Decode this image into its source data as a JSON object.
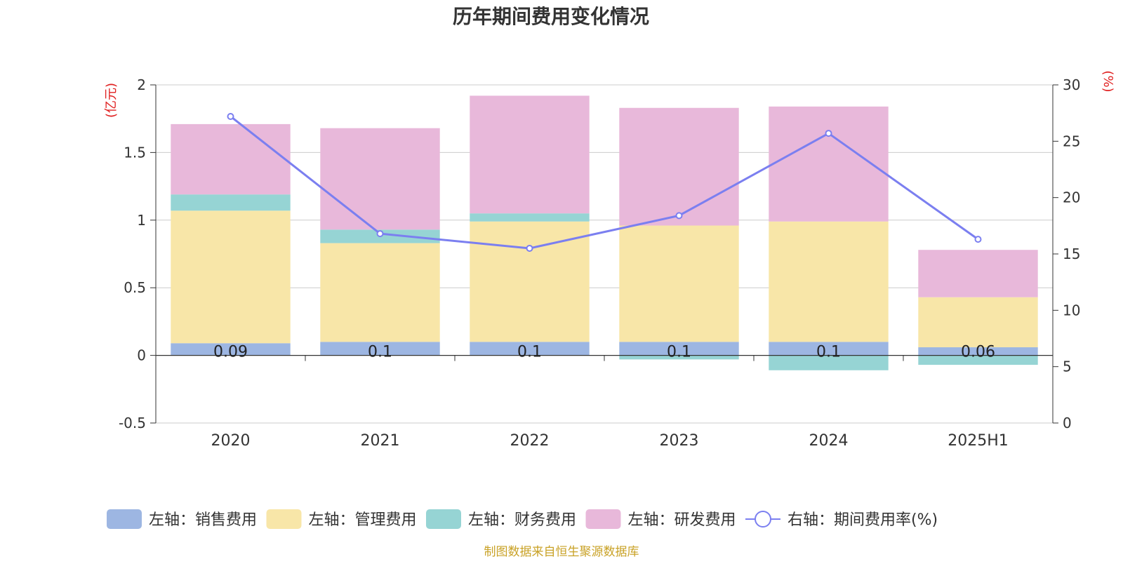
{
  "chart_data": {
    "type": "bar",
    "title": "历年期间费用变化情况",
    "left_unit": "(亿元)",
    "right_unit": "(%)",
    "categories": [
      "2020",
      "2021",
      "2022",
      "2023",
      "2024",
      "2025H1"
    ],
    "left_ylim": [
      -0.5,
      2
    ],
    "left_ticks": [
      "-0.5",
      "0",
      "0.5",
      "1",
      "1.5",
      "2"
    ],
    "right_ylim": [
      0,
      30
    ],
    "right_ticks": [
      "0",
      "5",
      "10",
      "15",
      "20",
      "25",
      "30"
    ],
    "series": [
      {
        "name": "左轴：销售费用",
        "type": "bar",
        "axis": "left",
        "color": "#9db6e2",
        "values": [
          0.09,
          0.1,
          0.1,
          0.1,
          0.1,
          0.06
        ],
        "labels": [
          "0.09",
          "0.1",
          "0.1",
          "0.1",
          "0.1",
          "0.06"
        ]
      },
      {
        "name": "左轴：管理费用",
        "type": "bar",
        "axis": "left",
        "color": "#f8e6a8",
        "values": [
          0.98,
          0.73,
          0.89,
          0.86,
          0.89,
          0.37
        ]
      },
      {
        "name": "左轴：财务费用",
        "type": "bar",
        "axis": "left",
        "color": "#96d4d4",
        "values": [
          0.12,
          0.1,
          0.06,
          -0.03,
          -0.11,
          -0.07
        ]
      },
      {
        "name": "左轴：研发费用",
        "type": "bar",
        "axis": "left",
        "color": "#e8b8da",
        "values": [
          0.52,
          0.75,
          0.87,
          0.87,
          0.85,
          0.35
        ]
      },
      {
        "name": "右轴：期间费用率(%)",
        "type": "line",
        "axis": "right",
        "color": "#7b7ff0",
        "values": [
          27.2,
          16.8,
          15.5,
          18.4,
          25.7,
          16.3
        ]
      }
    ],
    "grid": true,
    "legend_position": "bottom"
  },
  "source_note": "制图数据来自恒生聚源数据库"
}
